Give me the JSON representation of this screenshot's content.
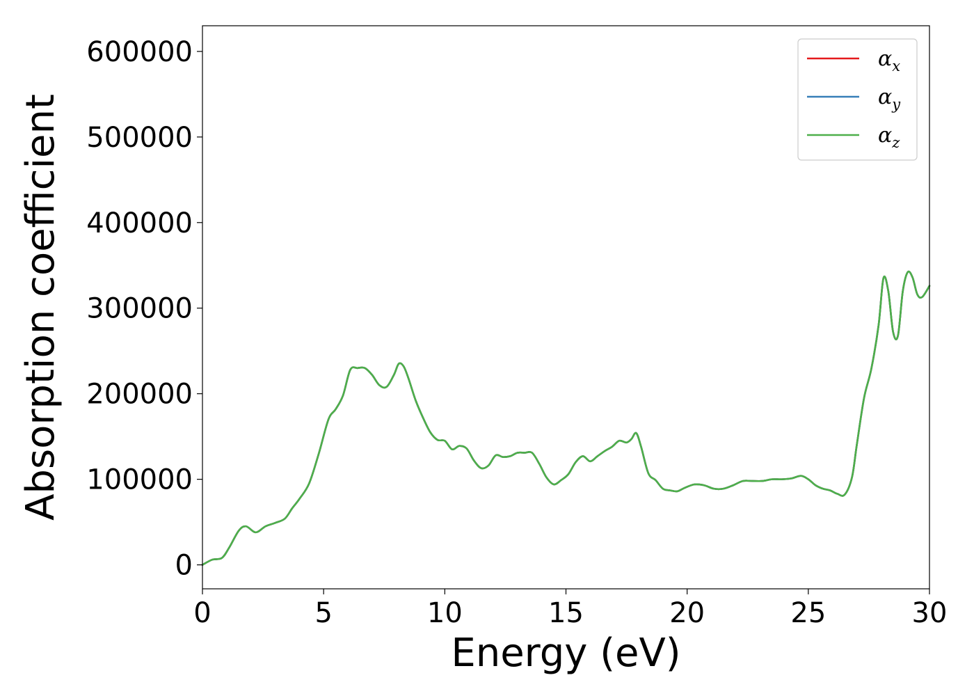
{
  "chart_data": {
    "type": "line",
    "xlabel": "Energy (eV)",
    "ylabel": "Absorption coefficient",
    "xlim": [
      0,
      30
    ],
    "ylim": [
      -28000,
      630000
    ],
    "xticks": [
      0,
      5,
      10,
      15,
      20,
      25,
      30
    ],
    "xtick_labels": [
      "0",
      "5",
      "10",
      "15",
      "20",
      "25",
      "30"
    ],
    "yticks": [
      0,
      100000,
      200000,
      300000,
      400000,
      500000,
      600000
    ],
    "ytick_labels": [
      "0",
      "100000",
      "200000",
      "300000",
      "400000",
      "500000",
      "600000"
    ],
    "grid": false,
    "legend_position": "top-right",
    "x": [
      0,
      0.4,
      0.8,
      1.1,
      1.5,
      1.8,
      2.2,
      2.6,
      3.0,
      3.4,
      3.7,
      4.0,
      4.4,
      4.8,
      5.2,
      5.5,
      5.8,
      6.1,
      6.4,
      6.7,
      7.0,
      7.3,
      7.6,
      7.9,
      8.1,
      8.3,
      8.5,
      8.8,
      9.1,
      9.4,
      9.7,
      10.0,
      10.3,
      10.6,
      10.9,
      11.2,
      11.5,
      11.8,
      12.1,
      12.4,
      12.7,
      13.0,
      13.3,
      13.6,
      13.9,
      14.2,
      14.5,
      14.8,
      15.1,
      15.4,
      15.7,
      16.0,
      16.3,
      16.6,
      16.9,
      17.2,
      17.5,
      17.7,
      17.9,
      18.1,
      18.4,
      18.7,
      19.0,
      19.3,
      19.6,
      19.9,
      20.3,
      20.7,
      21.1,
      21.5,
      21.9,
      22.3,
      22.7,
      23.1,
      23.5,
      23.9,
      24.3,
      24.7,
      25.0,
      25.3,
      25.6,
      25.9,
      26.2,
      26.5,
      26.8,
      27.0,
      27.3,
      27.6,
      27.9,
      28.1,
      28.3,
      28.5,
      28.7,
      28.9,
      29.1,
      29.3,
      29.5,
      29.7,
      30.0
    ],
    "series": [
      {
        "name": "x",
        "color": "#e41a1c",
        "values": [
          0,
          6000,
          8000,
          20000,
          40000,
          45000,
          38000,
          45000,
          49000,
          54000,
          66000,
          77000,
          95000,
          130000,
          170000,
          182000,
          198000,
          228000,
          230000,
          230000,
          222000,
          210000,
          208000,
          222000,
          235000,
          232000,
          218000,
          192000,
          172000,
          155000,
          146000,
          145000,
          135000,
          139000,
          136000,
          122000,
          113000,
          116000,
          128000,
          126000,
          127000,
          131000,
          131000,
          131000,
          118000,
          102000,
          94000,
          99000,
          106000,
          120000,
          127000,
          121000,
          127000,
          133000,
          138000,
          145000,
          143000,
          147000,
          154000,
          138000,
          107000,
          99000,
          89000,
          87000,
          86000,
          90000,
          94000,
          93000,
          89000,
          89000,
          93000,
          98000,
          98000,
          98000,
          100000,
          100000,
          101000,
          104000,
          100000,
          93000,
          89000,
          87000,
          83000,
          82000,
          102000,
          140000,
          195000,
          229000,
          280000,
          335000,
          320000,
          272000,
          268000,
          320000,
          342000,
          336000,
          316000,
          313000,
          326000
        ]
      },
      {
        "name": "y",
        "color": "#377eb8",
        "values": [
          0,
          6000,
          8000,
          20000,
          40000,
          45000,
          38000,
          45000,
          49000,
          54000,
          66000,
          77000,
          95000,
          130000,
          170000,
          182000,
          198000,
          228000,
          230000,
          230000,
          222000,
          210000,
          208000,
          222000,
          235000,
          232000,
          218000,
          192000,
          172000,
          155000,
          146000,
          145000,
          135000,
          139000,
          136000,
          122000,
          113000,
          116000,
          128000,
          126000,
          127000,
          131000,
          131000,
          131000,
          118000,
          102000,
          94000,
          99000,
          106000,
          120000,
          127000,
          121000,
          127000,
          133000,
          138000,
          145000,
          143000,
          147000,
          154000,
          138000,
          107000,
          99000,
          89000,
          87000,
          86000,
          90000,
          94000,
          93000,
          89000,
          89000,
          93000,
          98000,
          98000,
          98000,
          100000,
          100000,
          101000,
          104000,
          100000,
          93000,
          89000,
          87000,
          83000,
          82000,
          102000,
          140000,
          195000,
          229000,
          280000,
          335000,
          320000,
          272000,
          268000,
          320000,
          342000,
          336000,
          316000,
          313000,
          326000
        ]
      },
      {
        "name": "z",
        "color": "#4daf4a",
        "values": [
          0,
          6000,
          8000,
          20000,
          40000,
          45000,
          38000,
          45000,
          49000,
          54000,
          66000,
          77000,
          95000,
          130000,
          170000,
          182000,
          198000,
          228000,
          230000,
          230000,
          222000,
          210000,
          208000,
          222000,
          235000,
          232000,
          218000,
          192000,
          172000,
          155000,
          146000,
          145000,
          135000,
          139000,
          136000,
          122000,
          113000,
          116000,
          128000,
          126000,
          127000,
          131000,
          131000,
          131000,
          118000,
          102000,
          94000,
          99000,
          106000,
          120000,
          127000,
          121000,
          127000,
          133000,
          138000,
          145000,
          143000,
          147000,
          154000,
          138000,
          107000,
          99000,
          89000,
          87000,
          86000,
          90000,
          94000,
          93000,
          89000,
          89000,
          93000,
          98000,
          98000,
          98000,
          100000,
          100000,
          101000,
          104000,
          100000,
          93000,
          89000,
          87000,
          83000,
          82000,
          102000,
          140000,
          195000,
          229000,
          280000,
          335000,
          320000,
          272000,
          268000,
          320000,
          342000,
          336000,
          316000,
          313000,
          326000
        ]
      }
    ],
    "legend": [
      {
        "symbol": "α",
        "sub": "x",
        "color": "#e41a1c"
      },
      {
        "symbol": "α",
        "sub": "y",
        "color": "#377eb8"
      },
      {
        "symbol": "α",
        "sub": "z",
        "color": "#4daf4a"
      }
    ]
  }
}
